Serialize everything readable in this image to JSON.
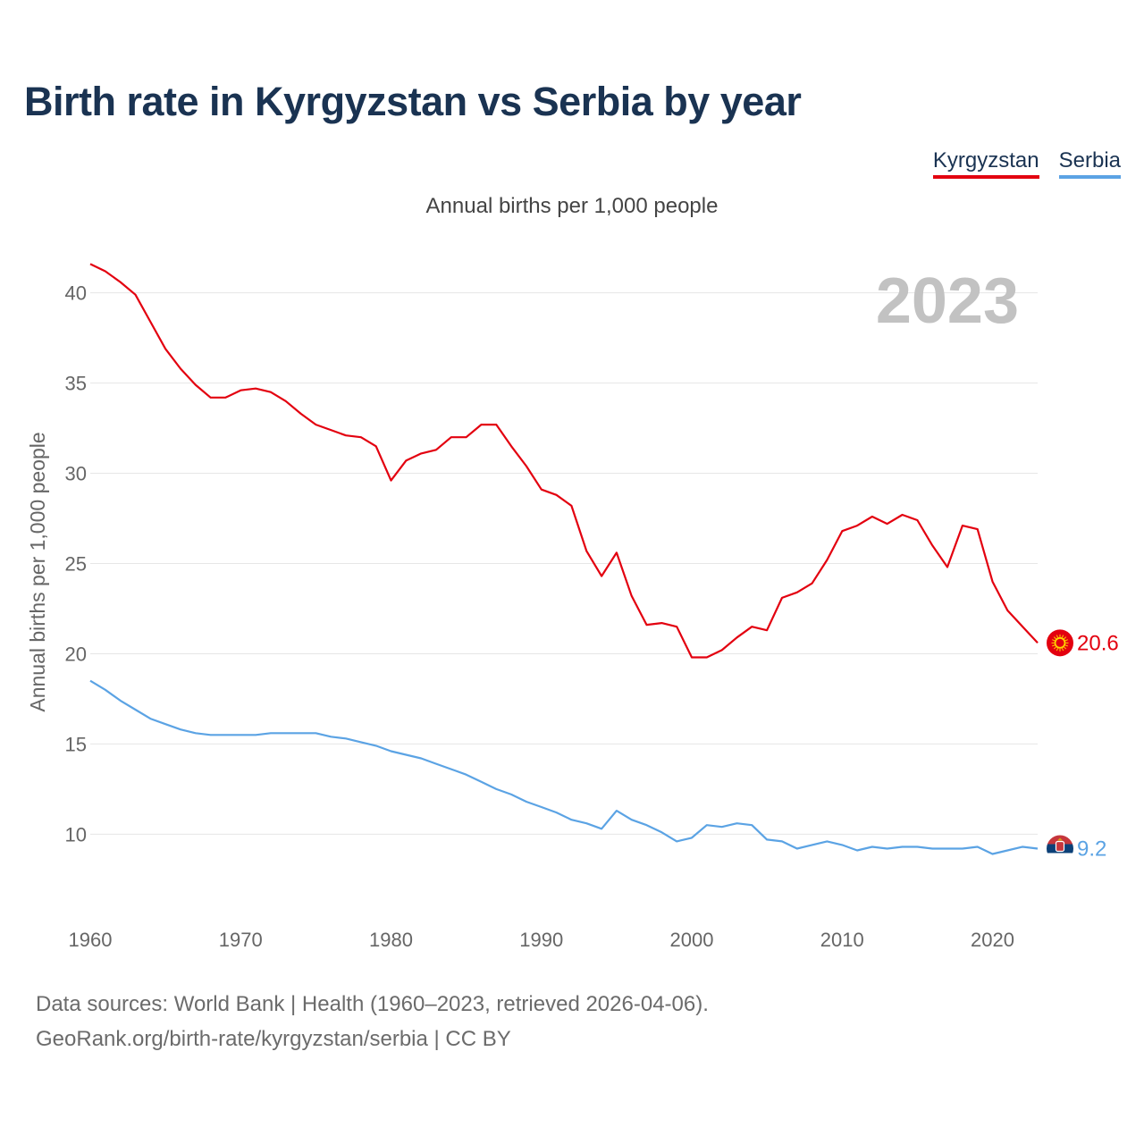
{
  "title": "Birth rate in Kyrgyzstan vs Serbia by year",
  "subtitle": "Annual births per 1,000 people",
  "legend": [
    {
      "name": "Kyrgyzstan",
      "color": "#e3000f"
    },
    {
      "name": "Serbia",
      "color": "#5ba3e4"
    }
  ],
  "source_lines": [
    "Data sources: World Bank | Health (1960–2023, retrieved 2026-04-06).",
    "GeoRank.org/birth-rate/kyrgyzstan/serbia | CC BY"
  ],
  "chart_data": {
    "type": "line",
    "title": "Birth rate in Kyrgyzstan vs Serbia by year",
    "xlabel": "",
    "ylabel": "Annual births per 1,000 people",
    "xlim": [
      1960,
      2023
    ],
    "ylim": [
      6.4,
      43.6
    ],
    "x_ticks": [
      1960,
      1970,
      1980,
      1990,
      2000,
      2010,
      2020
    ],
    "y_ticks": [
      10,
      15,
      20,
      25,
      30,
      35,
      40
    ],
    "grid": true,
    "year_watermark": "2023",
    "x": [
      1960,
      1961,
      1962,
      1963,
      1964,
      1965,
      1966,
      1967,
      1968,
      1969,
      1970,
      1971,
      1972,
      1973,
      1974,
      1975,
      1976,
      1977,
      1978,
      1979,
      1980,
      1981,
      1982,
      1983,
      1984,
      1985,
      1986,
      1987,
      1988,
      1989,
      1990,
      1991,
      1992,
      1993,
      1994,
      1995,
      1996,
      1997,
      1998,
      1999,
      2000,
      2001,
      2002,
      2003,
      2004,
      2005,
      2006,
      2007,
      2008,
      2009,
      2010,
      2011,
      2012,
      2013,
      2014,
      2015,
      2016,
      2017,
      2018,
      2019,
      2020,
      2021,
      2022,
      2023
    ],
    "series": [
      {
        "name": "Kyrgyzstan",
        "color": "#e3000f",
        "end_label": "20.6",
        "values": [
          41.6,
          41.2,
          40.6,
          39.9,
          38.4,
          36.9,
          35.8,
          34.9,
          34.2,
          34.2,
          34.6,
          34.7,
          34.5,
          34.0,
          33.3,
          32.7,
          32.4,
          32.1,
          32.0,
          31.5,
          29.6,
          30.7,
          31.1,
          31.3,
          32.0,
          32.0,
          32.7,
          32.7,
          31.5,
          30.4,
          29.1,
          28.8,
          28.2,
          25.7,
          24.3,
          25.6,
          23.2,
          21.6,
          21.7,
          21.5,
          19.8,
          19.8,
          20.2,
          20.9,
          21.5,
          21.3,
          23.1,
          23.4,
          23.9,
          25.2,
          26.8,
          27.1,
          27.6,
          27.2,
          27.7,
          27.4,
          26.0,
          24.8,
          27.1,
          26.9,
          24.0,
          22.4,
          21.5,
          20.6
        ]
      },
      {
        "name": "Serbia",
        "color": "#5ba3e4",
        "end_label": "9.2",
        "values": [
          18.5,
          18.0,
          17.4,
          16.9,
          16.4,
          16.1,
          15.8,
          15.6,
          15.5,
          15.5,
          15.5,
          15.5,
          15.6,
          15.6,
          15.6,
          15.6,
          15.4,
          15.3,
          15.1,
          14.9,
          14.6,
          14.4,
          14.2,
          13.9,
          13.6,
          13.3,
          12.9,
          12.5,
          12.2,
          11.8,
          11.5,
          11.2,
          10.8,
          10.6,
          10.3,
          11.3,
          10.8,
          10.5,
          10.1,
          9.6,
          9.8,
          10.5,
          10.4,
          10.6,
          10.5,
          9.7,
          9.6,
          9.2,
          9.4,
          9.6,
          9.4,
          9.1,
          9.3,
          9.2,
          9.3,
          9.3,
          9.2,
          9.2,
          9.2,
          9.3,
          8.9,
          9.1,
          9.3,
          9.2
        ]
      }
    ]
  }
}
